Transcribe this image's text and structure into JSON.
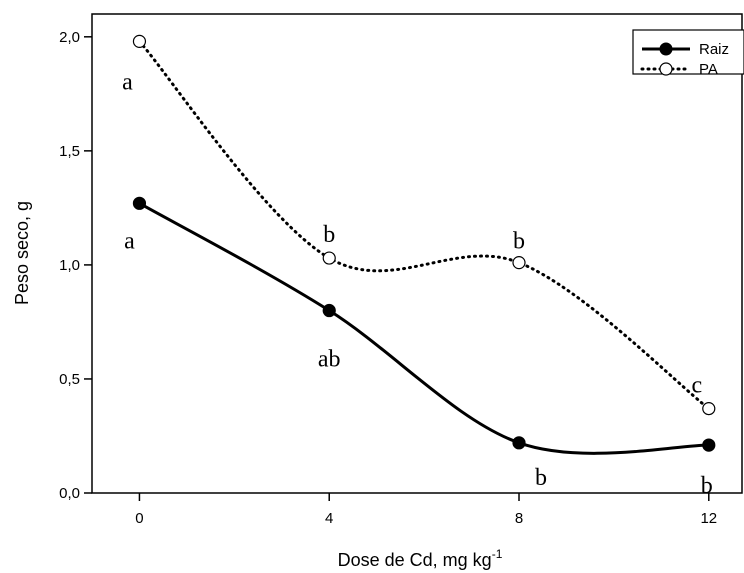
{
  "chart_data": {
    "type": "line",
    "xlabel": "Dose de Cd, mg kg",
    "xlabel_superscript": "-1",
    "ylabel": "Peso seco, g",
    "x_ticks": [
      0,
      4,
      8,
      12
    ],
    "y_ticks": [
      "0,0",
      "0,5",
      "1,0",
      "1,5",
      "2,0"
    ],
    "y_tick_values": [
      0.0,
      0.5,
      1.0,
      1.5,
      2.0
    ],
    "xlim": [
      -1,
      12.7
    ],
    "ylim": [
      0,
      2.1
    ],
    "x_tick_labels": [
      "0",
      "4",
      "8",
      "12"
    ],
    "legend_position": "top-right",
    "series": [
      {
        "name": "Raiz",
        "style": "solid",
        "marker": "filled-circle",
        "x": [
          0,
          4,
          8,
          12
        ],
        "y": [
          1.27,
          0.8,
          0.22,
          0.21
        ],
        "letters": [
          "a",
          "ab",
          "b",
          "b"
        ]
      },
      {
        "name": "PA",
        "style": "dotted",
        "marker": "open-circle",
        "x": [
          0,
          4,
          8,
          12
        ],
        "y": [
          1.98,
          1.03,
          1.01,
          0.37
        ],
        "letters": [
          "a",
          "b",
          "b",
          "c"
        ]
      }
    ]
  }
}
